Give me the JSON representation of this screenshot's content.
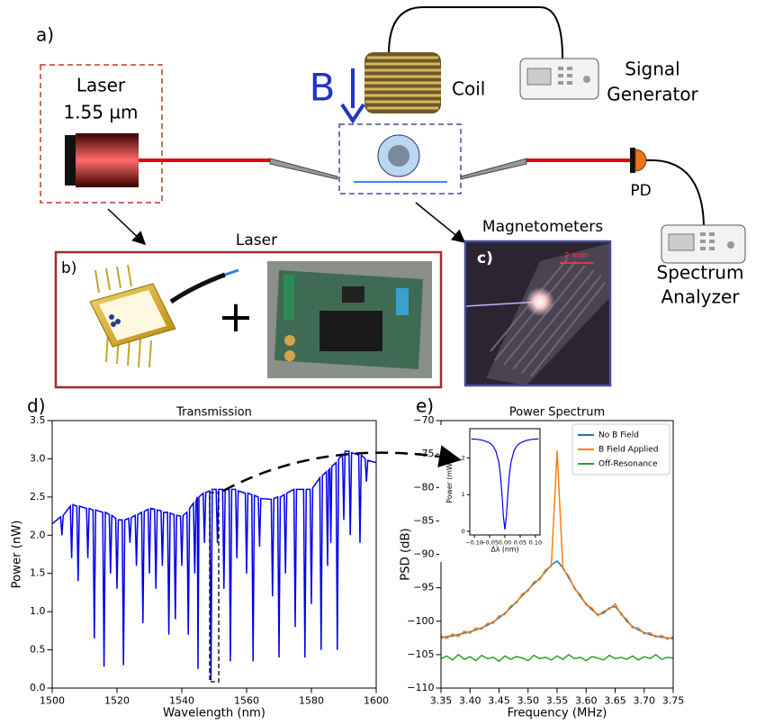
{
  "diagram": {
    "panel_a_label": "a)",
    "laser_title": "Laser",
    "laser_wavelength": "1.55 µm",
    "field_label": "B",
    "coil": "Coil",
    "signal_generator": [
      "Signal",
      "Generator"
    ],
    "pd": "PD",
    "spectrum_analyzer": [
      "Spectrum",
      "Analyzer"
    ],
    "laser_panel_title": "Laser",
    "panel_b_label": "b)",
    "plus": "+",
    "magnetometers": "Magnetometers",
    "panel_c_label": "c)",
    "scale_bar": "2 mm",
    "panel_d_label": "d)",
    "panel_e_label": "e)"
  },
  "chart_data": [
    {
      "type": "line",
      "title": "Transmission",
      "x_label": "Wavelength (nm)",
      "y_label": "Power (nW)",
      "color": "#0000ee",
      "x": [
        1500,
        1502.6,
        1503,
        1503.4,
        1505.6,
        1506,
        1506.4,
        1507.6,
        1508,
        1508.4,
        1510.6,
        1511,
        1511.4,
        1512.6,
        1513,
        1513.4,
        1515.6,
        1516,
        1516.4,
        1517.6,
        1518,
        1518.4,
        1519.6,
        1520,
        1520.4,
        1521.6,
        1522,
        1522.4,
        1523.6,
        1524,
        1524.4,
        1525.6,
        1526,
        1526.4,
        1527.6,
        1528,
        1528.4,
        1529.6,
        1530,
        1530.4,
        1531.6,
        1532,
        1532.4,
        1533.6,
        1534,
        1534.4,
        1535.6,
        1536,
        1536.4,
        1537.6,
        1538,
        1538.4,
        1539.6,
        1540,
        1540.4,
        1541.6,
        1542,
        1542.4,
        1543.6,
        1544,
        1544.4,
        1544.8,
        1545,
        1545.3,
        1546.6,
        1547,
        1547.4,
        1548.6,
        1549,
        1549.4,
        1550.6,
        1551,
        1551.4,
        1552.6,
        1553,
        1553.4,
        1554.6,
        1555,
        1555.4,
        1556.6,
        1557,
        1557.4,
        1559.6,
        1560,
        1560.4,
        1561.6,
        1562,
        1562.4,
        1563.6,
        1564,
        1564.4,
        1567.6,
        1568,
        1568.4,
        1569.6,
        1570,
        1570.4,
        1571.6,
        1572,
        1572.4,
        1574.6,
        1575,
        1575.4,
        1577.6,
        1578,
        1578.4,
        1579.6,
        1580,
        1580.4,
        1582.6,
        1583,
        1583.4,
        1584.6,
        1585,
        1585.3,
        1585.7,
        1586,
        1586.3,
        1587.6,
        1588,
        1588.4,
        1589.6,
        1590,
        1590.4,
        1591.6,
        1592,
        1592.4,
        1594.6,
        1595,
        1595.4,
        1596.6,
        1597,
        1597.4,
        1600
      ],
      "values": [
        2.15,
        2.24,
        2.0,
        2.26,
        2.38,
        1.7,
        2.4,
        2.38,
        1.4,
        2.38,
        2.35,
        1.7,
        2.35,
        2.33,
        0.65,
        2.33,
        2.3,
        0.28,
        2.3,
        2.27,
        1.5,
        2.26,
        2.22,
        1.3,
        2.2,
        2.2,
        0.3,
        2.2,
        2.22,
        1.9,
        2.23,
        2.26,
        1.6,
        2.27,
        2.3,
        0.85,
        2.31,
        2.34,
        1.5,
        2.35,
        2.34,
        1.3,
        2.33,
        2.32,
        1.6,
        2.3,
        2.3,
        0.7,
        2.29,
        2.27,
        0.9,
        2.26,
        2.25,
        1.6,
        2.26,
        2.3,
        0.7,
        2.35,
        2.42,
        1.5,
        2.45,
        2.5,
        0.25,
        2.5,
        2.55,
        1.9,
        2.56,
        2.58,
        0.1,
        2.6,
        2.6,
        1.9,
        2.6,
        2.6,
        1.3,
        2.6,
        2.6,
        0.35,
        2.6,
        2.6,
        1.7,
        2.58,
        2.55,
        1.5,
        2.55,
        2.53,
        0.35,
        2.52,
        2.5,
        1.85,
        2.48,
        2.47,
        1.2,
        2.48,
        2.5,
        0.4,
        2.5,
        2.53,
        1.5,
        2.55,
        2.6,
        0.8,
        2.6,
        2.6,
        0.4,
        2.6,
        2.6,
        1.1,
        2.62,
        2.75,
        0.5,
        2.78,
        2.83,
        1.6,
        2.85,
        2.87,
        1.9,
        2.9,
        2.95,
        0.5,
        3.0,
        3.05,
        2.2,
        3.1,
        3.1,
        2.0,
        3.08,
        3.05,
        1.9,
        3.05,
        3.0,
        2.7,
        2.98,
        2.95
      ],
      "xlim": [
        1500,
        1600
      ],
      "xticks": [
        1500,
        1520,
        1540,
        1560,
        1580,
        1600
      ],
      "ylim": [
        0,
        3.5
      ],
      "yticks": [
        {
          "value": 0,
          "label": "0.0"
        },
        0.5,
        {
          "value": 1,
          "label": "1.0"
        },
        1.5,
        {
          "value": 2,
          "label": "2.0"
        },
        2.5,
        {
          "value": 3,
          "label": "3.0"
        },
        3.5
      ]
    },
    {
      "type": "line",
      "title": "Power Spectrum",
      "x_label": "Frequency (MHz)",
      "y_label": "PSD (dB)",
      "legend": "upper right",
      "x": [
        3.35,
        3.36,
        3.37,
        3.38,
        3.39,
        3.4,
        3.41,
        3.42,
        3.43,
        3.44,
        3.45,
        3.46,
        3.47,
        3.48,
        3.49,
        3.5,
        3.51,
        3.52,
        3.53,
        3.54,
        3.55,
        3.56,
        3.57,
        3.58,
        3.59,
        3.6,
        3.61,
        3.62,
        3.63,
        3.64,
        3.65,
        3.66,
        3.67,
        3.68,
        3.69,
        3.7,
        3.71,
        3.72,
        3.73,
        3.74,
        3.75
      ],
      "series": [
        {
          "name": "No B Field",
          "color": "#1f77b4",
          "values": [
            -102.5,
            -102.3,
            -102.2,
            -102.0,
            -101.8,
            -101.6,
            -101.3,
            -101.0,
            -100.6,
            -100.1,
            -99.5,
            -98.8,
            -98.0,
            -97.1,
            -96.2,
            -95.3,
            -94.4,
            -93.6,
            -92.6,
            -91.6,
            -91.0,
            -92.0,
            -93.5,
            -95.0,
            -96.3,
            -97.4,
            -98.3,
            -99.0,
            -98.8,
            -98.0,
            -97.8,
            -98.8,
            -100.0,
            -100.8,
            -101.3,
            -101.7,
            -102.0,
            -102.2,
            -102.4,
            -102.5,
            -102.6
          ]
        },
        {
          "name": "B Field Applied",
          "color": "#ff7f0e",
          "values": [
            -102.2,
            -102.6,
            -101.9,
            -102.3,
            -101.5,
            -101.8,
            -101.0,
            -101.2,
            -100.3,
            -100.3,
            -99.2,
            -99.0,
            -97.7,
            -97.3,
            -95.9,
            -95.5,
            -94.1,
            -93.8,
            -92.3,
            -91.8,
            -74.5,
            -92.2,
            -93.2,
            -95.2,
            -96.0,
            -97.6,
            -98.0,
            -99.2,
            -98.5,
            -98.2,
            -97.4,
            -99.0,
            -99.7,
            -101.0,
            -101.0,
            -101.9,
            -101.7,
            -102.4,
            -102.1,
            -102.7,
            -102.3
          ]
        },
        {
          "name": "Off-Resonance",
          "color": "#2ca02c",
          "values": [
            -105.6,
            -105.2,
            -105.8,
            -105.0,
            -105.7,
            -105.3,
            -105.9,
            -105.1,
            -105.6,
            -105.4,
            -106.0,
            -105.2,
            -105.7,
            -105.3,
            -105.5,
            -105.9,
            -105.1,
            -105.6,
            -105.4,
            -105.8,
            -105.2,
            -105.7,
            -105.0,
            -105.6,
            -105.4,
            -105.9,
            -105.3,
            -105.5,
            -105.8,
            -105.1,
            -105.6,
            -105.4,
            -105.7,
            -105.2,
            -105.8,
            -105.3,
            -105.6,
            -105.0,
            -105.7,
            -105.4,
            -105.5
          ]
        }
      ],
      "xlim": [
        3.35,
        3.75
      ],
      "xticks": [
        3.35,
        {
          "value": 3.4,
          "label": "3.40"
        },
        3.45,
        {
          "value": 3.5,
          "label": "3.50"
        },
        3.55,
        {
          "value": 3.6,
          "label": "3.60"
        },
        3.65,
        {
          "value": 3.7,
          "label": "3.70"
        },
        3.75
      ],
      "ylim": [
        -110,
        -70
      ],
      "yticks": [
        {
          "value": -110,
          "label": "−110"
        },
        {
          "value": -105,
          "label": "−105"
        },
        {
          "value": -100,
          "label": "−100"
        },
        {
          "value": -95,
          "label": "−95"
        },
        {
          "value": -90,
          "label": "−90"
        },
        {
          "value": -85,
          "label": "−85"
        },
        {
          "value": -80,
          "label": "−80"
        },
        {
          "value": -75,
          "label": "−75"
        },
        {
          "value": -70,
          "label": "−70"
        }
      ]
    },
    {
      "type": "line",
      "x_label": "Δλ (nm)",
      "y_label": "Power (mW)",
      "color": "#0000ee",
      "x": [
        -0.11,
        -0.09,
        -0.07,
        -0.05,
        -0.04,
        -0.03,
        -0.02,
        -0.015,
        -0.01,
        -0.005,
        0,
        0.005,
        0.01,
        0.015,
        0.02,
        0.03,
        0.04,
        0.05,
        0.07,
        0.09,
        0.11
      ],
      "values": [
        2.52,
        2.51,
        2.48,
        2.41,
        2.34,
        2.2,
        1.89,
        1.57,
        1.07,
        0.42,
        0.05,
        0.42,
        1.07,
        1.57,
        1.89,
        2.2,
        2.34,
        2.41,
        2.48,
        2.51,
        2.52
      ],
      "xlim": [
        -0.115,
        0.115
      ],
      "xticks": [
        {
          "value": -0.1,
          "label": "−0.10"
        },
        {
          "value": -0.05,
          "label": "−0.05"
        },
        {
          "value": 0,
          "label": "0.00"
        },
        0.05,
        {
          "value": 0.1,
          "label": "0.10"
        }
      ],
      "ylim": [
        -0.1,
        2.8
      ],
      "yticks": [
        0,
        1,
        2
      ]
    }
  ]
}
